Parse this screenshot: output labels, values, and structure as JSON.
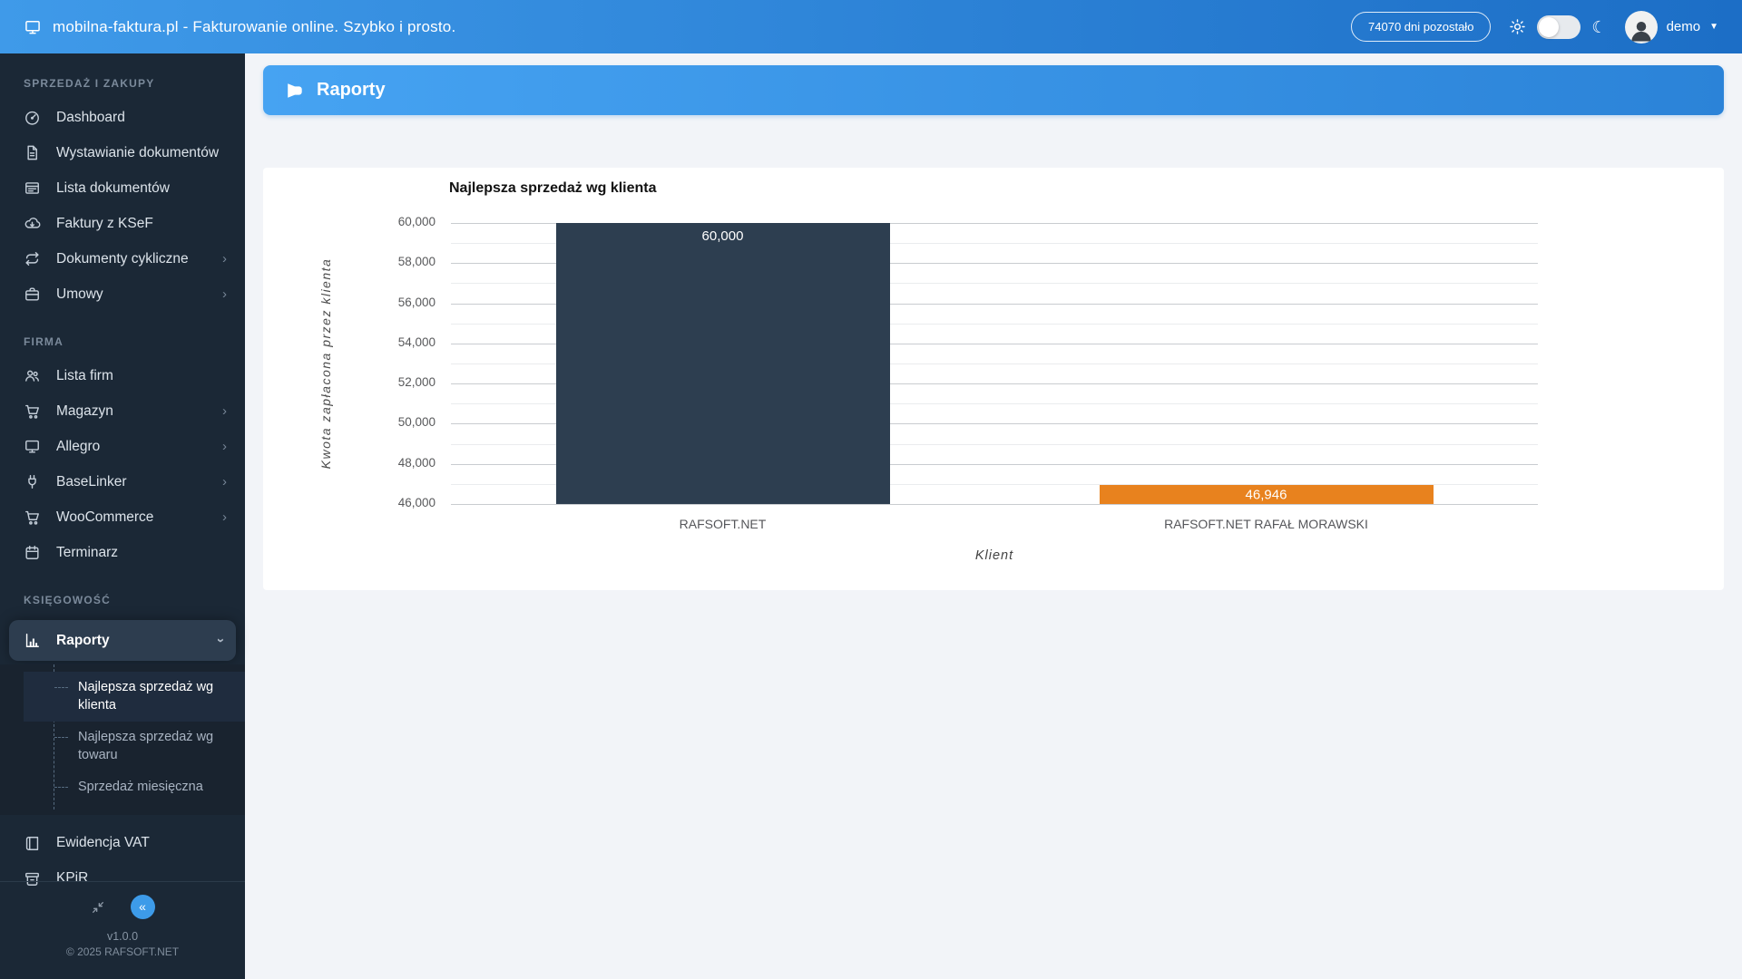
{
  "topbar": {
    "title": "mobilna-faktura.pl - Fakturowanie online. Szybko i prosto.",
    "badge": "74070 dni pozostało",
    "user": "demo"
  },
  "sidebar": {
    "sections": [
      {
        "label": "SPRZEDAŻ I ZAKUPY",
        "items": [
          {
            "icon": "gauge-icon",
            "label": "Dashboard"
          },
          {
            "icon": "document-icon",
            "label": "Wystawianie dokumentów"
          },
          {
            "icon": "list-icon",
            "label": "Lista dokumentów"
          },
          {
            "icon": "cloud-download-icon",
            "label": "Faktury z KSeF"
          },
          {
            "icon": "repeat-icon",
            "label": "Dokumenty cykliczne",
            "chevron": "›"
          },
          {
            "icon": "briefcase-icon",
            "label": "Umowy",
            "chevron": "›"
          }
        ]
      },
      {
        "label": "FIRMA",
        "items": [
          {
            "icon": "users-icon",
            "label": "Lista firm"
          },
          {
            "icon": "cart-icon",
            "label": "Magazyn",
            "chevron": "›"
          },
          {
            "icon": "monitor-icon",
            "label": "Allegro",
            "chevron": "›"
          },
          {
            "icon": "plug-icon",
            "label": "BaseLinker",
            "chevron": "›"
          },
          {
            "icon": "cart-icon",
            "label": "WooCommerce",
            "chevron": "›"
          },
          {
            "icon": "calendar-icon",
            "label": "Terminarz"
          }
        ]
      },
      {
        "label": "KSIĘGOWOŚĆ",
        "items": [
          {
            "icon": "bar-chart-icon",
            "label": "Raporty",
            "chevron": "›",
            "active": true,
            "submenu": [
              {
                "label": "Najlepsza sprzedaż wg klienta",
                "active": true
              },
              {
                "label": "Najlepsza sprzedaż wg towaru"
              },
              {
                "label": "Sprzedaż miesięczna"
              }
            ]
          },
          {
            "icon": "book-icon",
            "label": "Ewidencja VAT"
          },
          {
            "icon": "archive-icon",
            "label": "KPiR"
          }
        ]
      }
    ],
    "footer": {
      "version": "v1.0.0",
      "copyright": "© 2025 RAFSOFT.NET",
      "collapse_glyph": "«"
    }
  },
  "banner": {
    "title": "Raporty"
  },
  "colors": {
    "topbar_blue": "#3f9ae9",
    "topbar_blue_dark": "#1c6ec6",
    "sidebar_bg": "#1b2836",
    "banner_blue": "#46a3f2",
    "banner_blue_dark": "#2b83d8",
    "bar_dark": "#2d3e50",
    "bar_orange": "#e8821e"
  },
  "chart_data": {
    "type": "bar",
    "title": "Najlepsza sprzedaż wg klienta",
    "xlabel": "Klient",
    "ylabel": "Kwota zapłacona przez klienta",
    "categories": [
      "RAFSOFT.NET",
      "RAFSOFT.NET RAFAŁ MORAWSKI"
    ],
    "values": [
      60000,
      46946
    ],
    "value_labels": [
      "60,000",
      "46,946"
    ],
    "bar_colors": [
      "#2d3e50",
      "#e8821e"
    ],
    "ylim": [
      46000,
      60000
    ],
    "ytick_step": 2000,
    "minor_step": 1000,
    "ytick_labels": [
      "46,000",
      "48,000",
      "50,000",
      "52,000",
      "54,000",
      "56,000",
      "58,000",
      "60,000"
    ],
    "grid": true,
    "legend_position": "none"
  }
}
